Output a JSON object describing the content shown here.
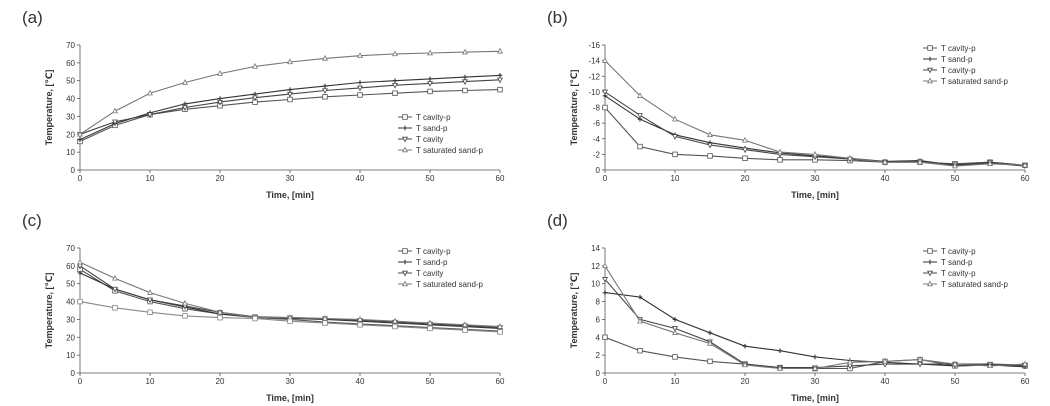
{
  "panels": [
    {
      "label": "(a)",
      "chart_data": {
        "type": "line",
        "xlabel": "Time, [min]",
        "ylabel": "Temperature, [℃]",
        "xlim": [
          0,
          60
        ],
        "ylim": [
          0,
          70
        ],
        "xticks": [
          0,
          10,
          20,
          30,
          40,
          50,
          60
        ],
        "yticks": [
          0,
          10,
          20,
          30,
          40,
          50,
          60,
          70
        ],
        "grid": false,
        "legend_position": "bottom-right",
        "x": [
          0,
          5,
          10,
          15,
          20,
          25,
          30,
          35,
          40,
          45,
          50,
          55,
          60
        ],
        "series": [
          {
            "name": "T cavity-p",
            "marker": "square",
            "values": [
              16,
              25,
              31,
              34,
              36,
              38,
              39.5,
              41,
              42,
              43,
              44,
              44.5,
              45
            ]
          },
          {
            "name": "T sand-p",
            "marker": "plus",
            "values": [
              17,
              26,
              32,
              37,
              40,
              42.5,
              45,
              47,
              49,
              50,
              51,
              52,
              53
            ]
          },
          {
            "name": "T cavity",
            "marker": "triangle-down",
            "values": [
              20,
              27,
              31,
              35,
              38,
              40.5,
              42.5,
              44.5,
              46,
              47.5,
              48.5,
              49.5,
              50.5
            ]
          },
          {
            "name": "T saturated sand-p",
            "marker": "triangle",
            "values": [
              20,
              33,
              43,
              49,
              54,
              58,
              60.5,
              62.5,
              64,
              65,
              65.5,
              66,
              66.5
            ]
          }
        ]
      }
    },
    {
      "label": "(b)",
      "chart_data": {
        "type": "line",
        "xlabel": "Time, [min]",
        "ylabel": "Temperature, [℃]",
        "xlim": [
          0,
          60
        ],
        "ylim": [
          0,
          -16
        ],
        "xticks": [
          0,
          10,
          20,
          30,
          40,
          50,
          60
        ],
        "yticks": [
          0,
          -2,
          -4,
          -6,
          -8,
          -10,
          -12,
          -14,
          -16
        ],
        "grid": false,
        "legend_position": "top-right",
        "x": [
          0,
          5,
          10,
          15,
          20,
          25,
          30,
          35,
          40,
          45,
          50,
          55,
          60
        ],
        "series": [
          {
            "name": "T cavity-p",
            "marker": "square",
            "values": [
              -8,
              -3,
              -2,
              -1.8,
              -1.5,
              -1.3,
              -1.3,
              -1.2,
              -1.0,
              -1.0,
              -0.8,
              -1.0,
              -0.6
            ]
          },
          {
            "name": "T sand-p",
            "marker": "plus",
            "values": [
              -9.5,
              -6.5,
              -4.5,
              -3.5,
              -2.8,
              -2.2,
              -1.8,
              -1.5,
              -1.1,
              -1.2,
              -0.6,
              -0.9,
              -0.5
            ]
          },
          {
            "name": "T cavity-p",
            "marker": "triangle-down",
            "values": [
              -10,
              -7,
              -4.3,
              -3.2,
              -2.6,
              -2.0,
              -1.7,
              -1.4,
              -1.0,
              -1.1,
              -0.7,
              -1.0,
              -0.6
            ]
          },
          {
            "name": "T saturated sand-p",
            "marker": "triangle",
            "values": [
              -14,
              -9.5,
              -6.5,
              -4.5,
              -3.8,
              -2.3,
              -2.0,
              -1.5,
              -1.0,
              -1.0,
              -0.5,
              -0.8,
              -0.6
            ]
          }
        ]
      }
    },
    {
      "label": "(c)",
      "chart_data": {
        "type": "line",
        "xlabel": "Time, [min]",
        "ylabel": "Temperature, [℃]",
        "xlim": [
          0,
          60
        ],
        "ylim": [
          0,
          70
        ],
        "xticks": [
          0,
          10,
          20,
          30,
          40,
          50,
          60
        ],
        "yticks": [
          0,
          10,
          20,
          30,
          40,
          50,
          60,
          70
        ],
        "grid": false,
        "legend_position": "top-right",
        "x": [
          0,
          5,
          10,
          15,
          20,
          25,
          30,
          35,
          40,
          45,
          50,
          55,
          60
        ],
        "series": [
          {
            "name": "T cavity-p",
            "marker": "square",
            "values": [
              58,
              46,
              40,
              36,
              33,
              31,
              30,
              28.5,
              27.5,
              26.5,
              25.5,
              24.5,
              23.5
            ]
          },
          {
            "name": "T sand-p",
            "marker": "plus",
            "values": [
              56,
              47,
              41,
              37,
              33,
              31.5,
              30.5,
              30,
              29,
              28,
              27,
              26,
              25
            ]
          },
          {
            "name": "T cavity",
            "marker": "triangle-down",
            "values": [
              60,
              47,
              41,
              37.5,
              34,
              31.5,
              31,
              30.5,
              29.5,
              28.5,
              27.5,
              26.5,
              25.5
            ]
          },
          {
            "name": "T saturated sand-p",
            "marker": "triangle",
            "values": [
              62,
              53,
              45,
              39,
              34,
              31,
              31,
              30.5,
              30,
              29,
              28,
              27,
              26
            ]
          },
          {
            "marker": "square-open",
            "values": [
              40,
              36.5,
              34,
              32,
              31,
              30.5,
              29,
              28,
              27,
              26,
              25,
              24,
              23
            ]
          }
        ]
      }
    },
    {
      "label": "(d)",
      "chart_data": {
        "type": "line",
        "xlabel": "Time, [min]",
        "ylabel": "Temperature, [℃]",
        "xlim": [
          0,
          60
        ],
        "ylim": [
          0,
          14
        ],
        "xticks": [
          0,
          10,
          20,
          30,
          40,
          50,
          60
        ],
        "yticks": [
          0,
          2,
          4,
          6,
          8,
          10,
          12,
          14
        ],
        "grid": false,
        "legend_position": "top-right",
        "x": [
          0,
          5,
          10,
          15,
          20,
          25,
          30,
          35,
          40,
          45,
          50,
          55,
          60
        ],
        "series": [
          {
            "name": "T cavity-p",
            "marker": "square",
            "values": [
              4,
              2.5,
              1.8,
              1.3,
              1.0,
              0.6,
              0.5,
              0.5,
              1.3,
              1.5,
              0.8,
              0.9,
              0.8
            ]
          },
          {
            "name": "T sand-p",
            "marker": "plus",
            "values": [
              9,
              8.5,
              6,
              4.5,
              3,
              2.5,
              1.8,
              1.4,
              1.2,
              1.0,
              0.8,
              0.9,
              0.7
            ]
          },
          {
            "name": "T cavity-p",
            "marker": "triangle-down",
            "values": [
              10.5,
              6,
              5,
              3.5,
              1.0,
              0.6,
              0.6,
              0.8,
              1.0,
              1.0,
              1.0,
              1.0,
              0.9
            ]
          },
          {
            "name": "T saturated sand-p",
            "marker": "triangle",
            "values": [
              12,
              5.8,
              4.5,
              3.3,
              0.9,
              0.5,
              0.5,
              1.2,
              1.3,
              1.5,
              1.0,
              0.8,
              1.0
            ]
          }
        ]
      }
    }
  ]
}
